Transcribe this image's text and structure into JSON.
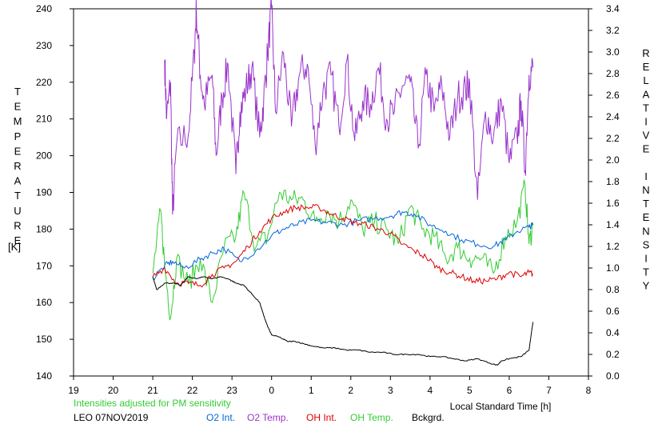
{
  "chart_data": {
    "type": "line",
    "title": "",
    "xlabel": "Local Standard Time [h]",
    "ylabel_left": "TEMPERATURE",
    "ylabel_left_unit": "[K]",
    "ylabel_right": "RELATIVE INTENSITY",
    "xlim": [
      19,
      32
    ],
    "x_tick_labels": [
      "19",
      "20",
      "21",
      "22",
      "23",
      "0",
      "1",
      "2",
      "3",
      "4",
      "5",
      "6",
      "7",
      "8"
    ],
    "ylim_left": [
      140,
      240
    ],
    "y_left_ticks": [
      140,
      150,
      160,
      170,
      180,
      190,
      200,
      210,
      220,
      230,
      240
    ],
    "ylim_right": [
      0.0,
      3.4
    ],
    "y_right_tick_labels": [
      "0.0",
      "0.2",
      "0.4",
      "0.6",
      "0.8",
      "1.0",
      "1.2",
      "1.4",
      "1.6",
      "1.8",
      "2.0",
      "2.2",
      "2.4",
      "2.6",
      "2.8",
      "3.0",
      "3.2",
      "3.4"
    ],
    "note": "Intensities adjusted for PM sensitivity",
    "station": "LEO 07NOV2019",
    "series": [
      {
        "name": "O2 Int.",
        "axis": "right",
        "color": "#0066dd",
        "x": [
          21.0,
          21.3,
          21.5,
          21.8,
          22.2,
          22.5,
          22.8,
          23.2,
          23.6,
          24.0,
          24.3,
          24.6,
          25.0,
          25.4,
          25.8,
          26.2,
          26.6,
          27.0,
          27.3,
          27.6,
          28.0,
          28.4,
          28.8,
          29.2,
          29.6,
          29.9,
          30.2,
          30.5,
          30.6
        ],
        "y": [
          0.9,
          1.02,
          1.06,
          1.0,
          1.08,
          1.14,
          1.18,
          1.06,
          1.16,
          1.3,
          1.36,
          1.4,
          1.44,
          1.42,
          1.4,
          1.44,
          1.46,
          1.48,
          1.52,
          1.5,
          1.4,
          1.34,
          1.26,
          1.22,
          1.2,
          1.26,
          1.34,
          1.38,
          1.4
        ]
      },
      {
        "name": "O2 Temp.",
        "axis": "left",
        "color": "#9933cc",
        "x": [
          21.3,
          21.35,
          21.45,
          21.5,
          21.6,
          21.9,
          22.05,
          22.1,
          22.2,
          22.3,
          22.5,
          22.6,
          22.75,
          22.9,
          23.1,
          23.2,
          23.35,
          23.5,
          23.7,
          23.8,
          23.9,
          24.0,
          24.1,
          24.3,
          24.5,
          24.7,
          24.9,
          25.1,
          25.3,
          25.5,
          25.7,
          25.9,
          26.1,
          26.3,
          26.5,
          26.7,
          26.9,
          27.1,
          27.3,
          27.5,
          27.7,
          27.9,
          28.1,
          28.3,
          28.5,
          28.7,
          28.9,
          29.0,
          29.2,
          29.4,
          29.6,
          29.8,
          30.0,
          30.2,
          30.3,
          30.4,
          30.5,
          30.6
        ],
        "y": [
          226,
          210,
          220,
          184,
          203,
          206,
          228,
          240,
          222,
          214,
          222,
          200,
          216,
          225,
          195,
          212,
          218,
          224,
          205,
          215,
          228,
          240,
          212,
          228,
          208,
          222,
          225,
          203,
          218,
          222,
          208,
          226,
          204,
          215,
          214,
          224,
          210,
          212,
          219,
          220,
          202,
          222,
          212,
          219,
          205,
          216,
          218,
          220,
          188,
          212,
          205,
          215,
          198,
          205,
          215,
          196,
          222,
          224
        ]
      },
      {
        "name": "OH Int.",
        "axis": "right",
        "color": "#dd0000",
        "x": [
          21.0,
          21.3,
          21.6,
          21.9,
          22.2,
          22.5,
          22.8,
          23.1,
          23.4,
          23.7,
          24.0,
          24.3,
          24.6,
          24.9,
          25.2,
          25.5,
          25.8,
          26.1,
          26.4,
          26.7,
          27.0,
          27.3,
          27.6,
          27.9,
          28.2,
          28.5,
          28.8,
          29.1,
          29.4,
          29.7,
          30.0,
          30.3,
          30.5,
          30.6
        ],
        "y": [
          0.92,
          1.0,
          0.86,
          0.86,
          0.84,
          0.94,
          1.0,
          1.06,
          1.2,
          1.34,
          1.46,
          1.52,
          1.56,
          1.56,
          1.56,
          1.5,
          1.46,
          1.42,
          1.4,
          1.36,
          1.32,
          1.22,
          1.16,
          1.1,
          1.0,
          0.96,
          0.92,
          0.88,
          0.88,
          0.9,
          0.96,
          0.92,
          0.96,
          0.94
        ]
      },
      {
        "name": "OH Temp.",
        "axis": "left",
        "color": "#33cc33",
        "x": [
          21.0,
          21.2,
          21.3,
          21.45,
          21.6,
          21.9,
          22.2,
          22.5,
          22.8,
          23.1,
          23.3,
          23.6,
          23.9,
          24.2,
          24.5,
          24.8,
          25.1,
          25.4,
          25.7,
          26.0,
          26.3,
          26.6,
          26.9,
          27.2,
          27.5,
          27.8,
          28.1,
          28.4,
          28.7,
          29.0,
          29.3,
          29.6,
          29.9,
          30.2,
          30.4,
          30.5,
          30.6
        ],
        "y": [
          168,
          185,
          170,
          156,
          172,
          165,
          172,
          160,
          175,
          178,
          190,
          175,
          178,
          190,
          188,
          188,
          182,
          185,
          182,
          188,
          180,
          182,
          180,
          176,
          186,
          180,
          178,
          172,
          175,
          172,
          172,
          168,
          178,
          182,
          192,
          176,
          181
        ]
      },
      {
        "name": "Bckgrd.",
        "axis": "right",
        "color": "#000000",
        "x": [
          21.0,
          21.1,
          21.3,
          21.5,
          21.7,
          21.9,
          22.1,
          22.3,
          22.5,
          22.7,
          22.9,
          23.1,
          23.3,
          23.5,
          23.7,
          23.8,
          23.9,
          24.0,
          24.2,
          24.4,
          24.6,
          24.8,
          25.0,
          25.3,
          25.6,
          25.9,
          26.2,
          26.5,
          26.8,
          27.1,
          27.4,
          27.7,
          28.0,
          28.3,
          28.6,
          28.9,
          29.2,
          29.5,
          29.7,
          29.8,
          30.0,
          30.3,
          30.5,
          30.6
        ],
        "y": [
          0.92,
          0.8,
          0.86,
          0.86,
          0.84,
          0.92,
          0.9,
          0.92,
          0.9,
          0.92,
          0.9,
          0.86,
          0.84,
          0.76,
          0.68,
          0.56,
          0.46,
          0.38,
          0.36,
          0.32,
          0.32,
          0.3,
          0.28,
          0.26,
          0.26,
          0.24,
          0.24,
          0.22,
          0.22,
          0.2,
          0.2,
          0.2,
          0.18,
          0.18,
          0.16,
          0.14,
          0.16,
          0.12,
          0.1,
          0.14,
          0.16,
          0.18,
          0.24,
          0.5
        ]
      }
    ]
  }
}
